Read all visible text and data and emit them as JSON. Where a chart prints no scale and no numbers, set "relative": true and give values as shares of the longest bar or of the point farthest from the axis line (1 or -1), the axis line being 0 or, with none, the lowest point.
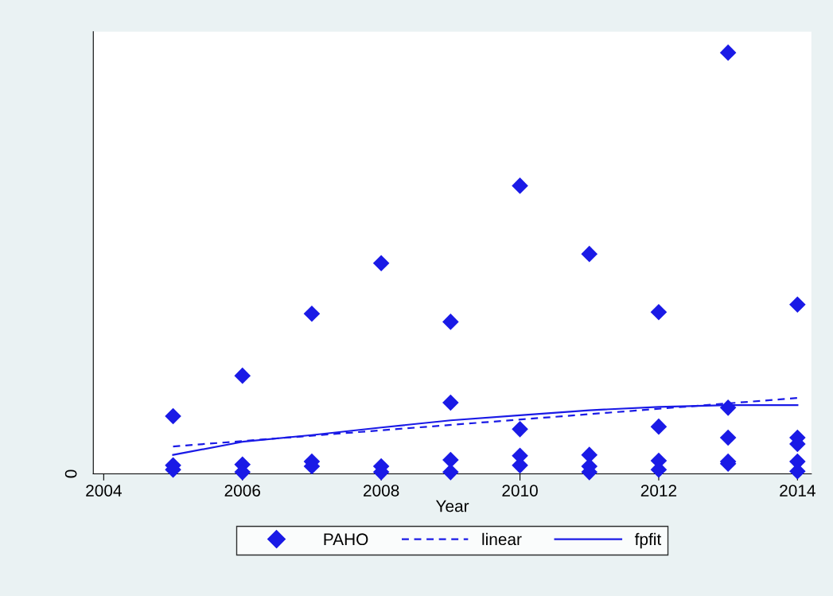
{
  "chart_data": {
    "type": "scatter",
    "xlabel": "Year",
    "relative": true,
    "legend": "bottom",
    "annotations": [
      "0"
    ],
    "xlim": [
      2003.85,
      2014.2
    ],
    "xticks": [
      2004,
      2006,
      2008,
      2010,
      2012,
      2014
    ],
    "series": [
      {
        "name": "PAHO",
        "type": "scatter",
        "marker": "diamond",
        "color": "#1a1ae6",
        "x": [
          2005,
          2005,
          2005,
          2006,
          2006,
          2006,
          2007,
          2007,
          2007,
          2008,
          2008,
          2008,
          2009,
          2009,
          2009,
          2009,
          2010,
          2010,
          2010,
          2010,
          2011,
          2011,
          2011,
          2011,
          2012,
          2012,
          2012,
          2012,
          2013,
          2013,
          2013,
          2013,
          2013,
          2014,
          2014,
          2014,
          2014,
          2014
        ],
        "values": [
          0.137,
          0.02,
          0.01,
          0.233,
          0.022,
          0.004,
          0.38,
          0.029,
          0.018,
          0.5,
          0.018,
          0.004,
          0.361,
          0.169,
          0.033,
          0.004,
          0.684,
          0.106,
          0.043,
          0.02,
          0.522,
          0.045,
          0.018,
          0.004,
          0.384,
          0.112,
          0.031,
          0.01,
          1,
          0.157,
          0.086,
          0.029,
          0.024,
          0.402,
          0.086,
          0.071,
          0.029,
          0.006
        ]
      },
      {
        "name": "linear",
        "type": "line",
        "line_style": "dashed",
        "marker": "none",
        "color": "#1a1ae6",
        "x": [
          2005,
          2014
        ],
        "values": [
          0.065,
          0.18
        ]
      },
      {
        "name": "fpfit",
        "type": "line",
        "line_style": "solid",
        "marker": "none",
        "color": "#1a1ae6",
        "x": [
          2005,
          2006,
          2007,
          2008,
          2009,
          2010,
          2011,
          2012,
          2013,
          2014
        ],
        "values": [
          0.045,
          0.076,
          0.092,
          0.11,
          0.127,
          0.139,
          0.151,
          0.159,
          0.163,
          0.163
        ]
      }
    ]
  }
}
